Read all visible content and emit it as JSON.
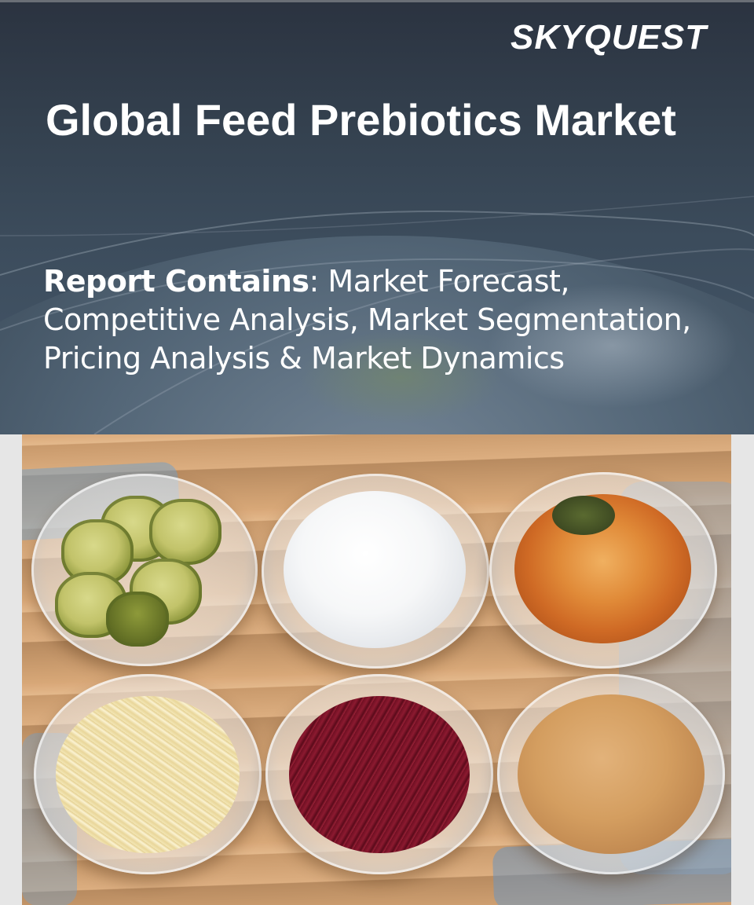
{
  "brand": {
    "logo_text": "SKYQUEST",
    "color": "#ffffff"
  },
  "hero": {
    "title": "Global Feed Prebiotics Market",
    "report_lead": "Report Contains",
    "report_text": ": Market Forecast, Competitive Analysis, Market Segmentation, Pricing Analysis & Market Dynamics",
    "text_color": "#ffffff",
    "background_color": "#34414f"
  },
  "photo": {
    "description_icon": "fermented-food-bowls-photo",
    "bowls": [
      {
        "name": "pickles-bowl"
      },
      {
        "name": "yogurt-bowl"
      },
      {
        "name": "kimchi-bowl"
      },
      {
        "name": "sauerkraut-bowl"
      },
      {
        "name": "beet-bowl"
      },
      {
        "name": "broth-bowl"
      }
    ]
  }
}
